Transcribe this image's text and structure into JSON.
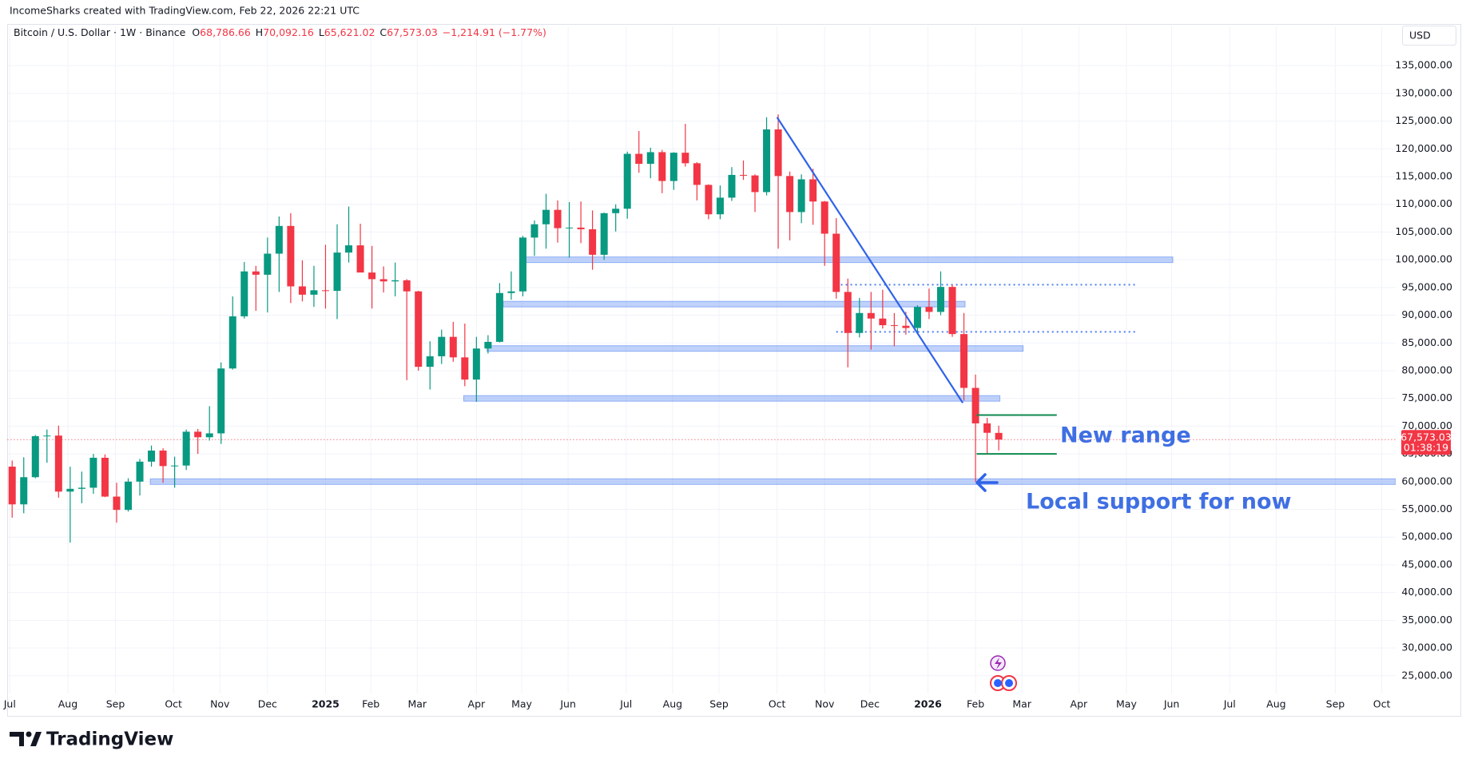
{
  "chart_data": {
    "type": "candlestick",
    "title": "Bitcoin / U.S. Dollar · 1W · Binance",
    "subtitle": "IncomeSharks created with TradingView.com, Feb 22, 2026 22:21 UTC",
    "legend": [
      {
        "key": "O",
        "value": "68,786.66"
      },
      {
        "key": "H",
        "value": "70,092.16"
      },
      {
        "key": "L",
        "value": "65,621.02"
      },
      {
        "key": "C",
        "value": "67,573.03"
      }
    ],
    "change": "−1,214.91 (−1.77%)",
    "currency": "USD",
    "up_color": "#089981",
    "down_color": "#f23645",
    "open": [
      62700,
      55900,
      60800,
      68200,
      68300,
      58200,
      58700,
      58900,
      64300,
      57300,
      54900,
      60000,
      63600,
      65600,
      62800,
      62900,
      69000,
      68000,
      68700,
      80400,
      89800,
      97900,
      97300,
      101100,
      106100,
      95200,
      93700,
      94500,
      94400,
      101300,
      102600,
      97700,
      96500,
      96100,
      96300,
      94300,
      80700,
      82600,
      86100,
      82400,
      78400,
      84000,
      85200,
      94000,
      94300,
      104000,
      106400,
      109000,
      105700,
      105800,
      105500,
      100900,
      108400,
      109200,
      119100,
      117300,
      119400,
      114200,
      119300,
      117400,
      113500,
      108200,
      111200,
      115300,
      115200,
      112200,
      123500,
      115100,
      108600,
      114500,
      110500,
      104700,
      94200,
      86800,
      90400,
      89400,
      88200,
      88100,
      87700,
      91500,
      90600,
      95100,
      86600,
      76900,
      70500,
      68786.66
    ],
    "high": [
      63800,
      64400,
      68400,
      69400,
      70100,
      62700,
      61800,
      65000,
      64900,
      59800,
      60600,
      64100,
      66500,
      66000,
      64500,
      69400,
      69500,
      73600,
      81500,
      93400,
      99600,
      98900,
      104000,
      107800,
      108400,
      99900,
      98900,
      102700,
      106400,
      109600,
      106500,
      102500,
      98800,
      99500,
      96500,
      94400,
      85300,
      87400,
      88800,
      88500,
      86100,
      86400,
      95800,
      97900,
      104300,
      107100,
      111900,
      110700,
      110400,
      110500,
      108900,
      108500,
      110000,
      119500,
      123200,
      120200,
      119800,
      119400,
      124500,
      117600,
      113600,
      113400,
      116700,
      117900,
      115400,
      125700,
      126200,
      115900,
      115400,
      116400,
      110600,
      107500,
      96600,
      93100,
      94200,
      94600,
      90400,
      90600,
      91800,
      94800,
      97900,
      95500,
      90400,
      79300,
      71500,
      70092.16
    ],
    "low": [
      53500,
      54300,
      60600,
      63400,
      57100,
      49000,
      56100,
      57800,
      57200,
      52600,
      54600,
      57500,
      62700,
      59800,
      58900,
      62100,
      65000,
      67400,
      66800,
      80200,
      89400,
      90800,
      90500,
      94200,
      92200,
      92500,
      91500,
      91200,
      89300,
      99500,
      97800,
      91200,
      94100,
      93400,
      78300,
      80000,
      76600,
      81200,
      81600,
      77200,
      74400,
      83100,
      85100,
      92800,
      93400,
      100700,
      102000,
      103100,
      100400,
      103000,
      98200,
      100000,
      105100,
      107400,
      115700,
      114700,
      112000,
      112600,
      116800,
      110700,
      107300,
      107300,
      110600,
      114400,
      108600,
      111600,
      102000,
      103500,
      106600,
      106300,
      98900,
      93000,
      80600,
      86000,
      83800,
      87600,
      84400,
      86500,
      86900,
      89300,
      90000,
      86100,
      74600,
      60000,
      65100,
      65621.02
    ],
    "close": [
      55900,
      60800,
      68200,
      68300,
      58200,
      58700,
      58900,
      64300,
      57300,
      54900,
      60000,
      63600,
      65600,
      62800,
      62900,
      69000,
      68000,
      68700,
      80400,
      89800,
      97900,
      97300,
      101100,
      106100,
      95200,
      93700,
      94500,
      94400,
      101300,
      102600,
      97700,
      96500,
      96100,
      96300,
      94300,
      80700,
      82600,
      86100,
      82400,
      78400,
      84000,
      85200,
      94000,
      94300,
      104000,
      106400,
      109000,
      105700,
      105800,
      105500,
      100900,
      108400,
      109200,
      119100,
      117300,
      119400,
      114200,
      119300,
      117400,
      113500,
      108200,
      111200,
      115300,
      115200,
      112200,
      123500,
      115100,
      108600,
      114500,
      110500,
      104700,
      94200,
      86800,
      90400,
      89400,
      88200,
      88100,
      87700,
      91500,
      90600,
      95100,
      86600,
      76900,
      70500,
      68800,
      67573.03
    ],
    "last_price": {
      "value": 67573.03,
      "label": "67,573.03"
    },
    "countdown": "01:38:19",
    "xlim": [
      -0.4,
      119.2
    ],
    "xticks": [
      {
        "value": -0.2,
        "label": "Jul"
      },
      {
        "value": 4.8,
        "label": "Aug"
      },
      {
        "value": 8.9,
        "label": "Sep"
      },
      {
        "value": 13.9,
        "label": "Oct"
      },
      {
        "value": 17.9,
        "label": "Nov"
      },
      {
        "value": 22.0,
        "label": "Dec"
      },
      {
        "value": 27.0,
        "label": "2025"
      },
      {
        "value": 30.9,
        "label": "Feb"
      },
      {
        "value": 34.9,
        "label": "Mar"
      },
      {
        "value": 40.0,
        "label": "Apr"
      },
      {
        "value": 43.9,
        "label": "May"
      },
      {
        "value": 47.9,
        "label": "Jun"
      },
      {
        "value": 52.9,
        "label": "Jul"
      },
      {
        "value": 56.9,
        "label": "Aug"
      },
      {
        "value": 60.9,
        "label": "Sep"
      },
      {
        "value": 65.9,
        "label": "Oct"
      },
      {
        "value": 70.0,
        "label": "Nov"
      },
      {
        "value": 73.9,
        "label": "Dec"
      },
      {
        "value": 78.9,
        "label": "2026"
      },
      {
        "value": 83.0,
        "label": "Feb"
      },
      {
        "value": 87.0,
        "label": "Mar"
      },
      {
        "value": 91.9,
        "label": "Apr"
      },
      {
        "value": 96.0,
        "label": "May"
      },
      {
        "value": 99.9,
        "label": "Jun"
      },
      {
        "value": 104.9,
        "label": "Jul"
      },
      {
        "value": 108.9,
        "label": "Aug"
      },
      {
        "value": 114.0,
        "label": "Sep"
      },
      {
        "value": 118.0,
        "label": "Oct"
      }
    ],
    "ylim": [
      21800,
      139200
    ],
    "yticks": [
      {
        "value": 25000,
        "label": "25,000.00"
      },
      {
        "value": 30000,
        "label": "30,000.00"
      },
      {
        "value": 35000,
        "label": "35,000.00"
      },
      {
        "value": 40000,
        "label": "40,000.00"
      },
      {
        "value": 45000,
        "label": "45,000.00"
      },
      {
        "value": 50000,
        "label": "50,000.00"
      },
      {
        "value": 55000,
        "label": "55,000.00"
      },
      {
        "value": 60000,
        "label": "60,000.00"
      },
      {
        "value": 65000,
        "label": "65,000.00"
      },
      {
        "value": 70000,
        "label": "70,000.00"
      },
      {
        "value": 75000,
        "label": "75,000.00"
      },
      {
        "value": 80000,
        "label": "80,000.00"
      },
      {
        "value": 85000,
        "label": "85,000.00"
      },
      {
        "value": 90000,
        "label": "90,000.00"
      },
      {
        "value": 95000,
        "label": "95,000.00"
      },
      {
        "value": 100000,
        "label": "100,000.00"
      },
      {
        "value": 105000,
        "label": "105,000.00"
      },
      {
        "value": 110000,
        "label": "110,000.00"
      },
      {
        "value": 115000,
        "label": "115,000.00"
      },
      {
        "value": 120000,
        "label": "120,000.00"
      },
      {
        "value": 125000,
        "label": "125,000.00"
      },
      {
        "value": 130000,
        "label": "130,000.00"
      },
      {
        "value": 135000,
        "label": "135,000.00"
      }
    ],
    "grid": true,
    "drawings": {
      "zone_color": "#4a7ef0",
      "zones": [
        {
          "price": 100000,
          "from": 44.1,
          "to": 100.0
        },
        {
          "price": 92000,
          "from": 42.3,
          "to": 82.1
        },
        {
          "price": 84000,
          "from": 40.9,
          "to": 87.1
        },
        {
          "price": 75000,
          "from": 38.9,
          "to": 85.1
        },
        {
          "price": 60000,
          "from": 11.9,
          "to": 119.2
        }
      ],
      "trendline": {
        "x": [
          65.9,
          81.9
        ],
        "y": [
          125700,
          74200
        ],
        "color": "#2f63e8"
      },
      "dotted_levels": [
        {
          "price": 95500,
          "from": 71.4,
          "to": 96.8
        },
        {
          "price": 87000,
          "from": 71.0,
          "to": 96.8
        }
      ],
      "range_color": "#0f8a4f",
      "range_lines": [
        {
          "price": 72000,
          "from": 83.1,
          "to": 90.0
        },
        {
          "price": 65000,
          "from": 83.1,
          "to": 90.0
        }
      ]
    },
    "annotations": [
      "New range",
      "Local support for now"
    ]
  },
  "branding": "TradingView"
}
